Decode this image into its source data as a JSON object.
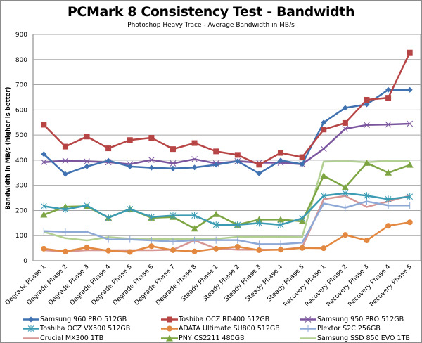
{
  "chart_data": {
    "type": "line",
    "title": "PCMark 8 Consistency Test - Bandwidth",
    "subtitle": "Photoshop Heavy Trace - Average Bandwidth in MB/s",
    "xlabel": "",
    "ylabel": "Bandwidth in MB/s (higher is better)",
    "ylim": [
      0,
      900
    ],
    "yticks": [
      0,
      100,
      200,
      300,
      400,
      500,
      600,
      700,
      800,
      900
    ],
    "grid": true,
    "legend_position": "bottom",
    "categories": [
      "Degrade Phase 1",
      "Degrade Phase 2",
      "Degrade Phase 3",
      "Degrade Phase 4",
      "Degrade Phase 5",
      "Degrade Phase 6",
      "Degrade Phase 7",
      "Degrade Phase 8",
      "Steady Phase 1",
      "Steady Phase 2",
      "Steady Phase 3",
      "Steady Phase 4",
      "Steady Phase 5",
      "Recovery Phase 1",
      "Recovery Phase 2",
      "Recovery Phase 3",
      "Recovery Phase 4",
      "Recovery Phase 5"
    ],
    "series": [
      {
        "name": "Samsung 960 PRO 512GB",
        "color": "#4071b0",
        "marker": "diamond",
        "values": [
          424,
          345,
          375,
          398,
          375,
          370,
          367,
          371,
          382,
          396,
          347,
          399,
          384,
          550,
          608,
          622,
          680,
          680
        ]
      },
      {
        "name": "Toshiba OCZ RD400 512GB",
        "color": "#b84545",
        "marker": "square",
        "values": [
          541,
          454,
          494,
          447,
          480,
          489,
          444,
          468,
          435,
          421,
          382,
          429,
          412,
          522,
          548,
          640,
          648,
          828
        ]
      },
      {
        "name": "Samsung 950 PRO 512GB",
        "color": "#7b559e",
        "marker": "x",
        "values": [
          392,
          398,
          395,
          392,
          384,
          401,
          387,
          404,
          387,
          396,
          390,
          390,
          384,
          445,
          525,
          540,
          542,
          545
        ]
      },
      {
        "name": "Toshiba OCZ VX500 512GB",
        "color": "#3a9bb3",
        "marker": "star",
        "values": [
          217,
          204,
          220,
          171,
          206,
          174,
          180,
          180,
          143,
          143,
          150,
          143,
          169,
          259,
          269,
          259,
          245,
          255
        ]
      },
      {
        "name": "ADATA Ultimate SU800 512GB",
        "color": "#e28840",
        "marker": "circle",
        "values": [
          48,
          37,
          53,
          40,
          35,
          58,
          42,
          37,
          48,
          56,
          42,
          44,
          51,
          50,
          103,
          81,
          139,
          153
        ]
      },
      {
        "name": "Plextor S2C 256GB",
        "color": "#8ea9d6",
        "marker": "plus",
        "values": [
          118,
          115,
          115,
          85,
          85,
          81,
          76,
          82,
          82,
          82,
          66,
          66,
          72,
          228,
          211,
          236,
          220,
          220
        ]
      },
      {
        "name": "Crucial MX300 1TB",
        "color": "#d59694",
        "marker": "none",
        "values": [
          42,
          37,
          42,
          42,
          42,
          42,
          44,
          81,
          49,
          44,
          44,
          44,
          53,
          245,
          258,
          214,
          236,
          259
        ]
      },
      {
        "name": "PNY CS2211 480GB",
        "color": "#7ea543",
        "marker": "triangle",
        "values": [
          183,
          215,
          217,
          171,
          206,
          171,
          174,
          128,
          185,
          143,
          164,
          164,
          157,
          338,
          292,
          389,
          350,
          381
        ]
      },
      {
        "name": "Samsung SSD 850 EVO 1TB",
        "color": "#b3d093",
        "marker": "none",
        "values": [
          115,
          90,
          81,
          94,
          88,
          87,
          87,
          87,
          87,
          95,
          95,
          95,
          94,
          394,
          396,
          392,
          397,
          397
        ]
      }
    ]
  }
}
